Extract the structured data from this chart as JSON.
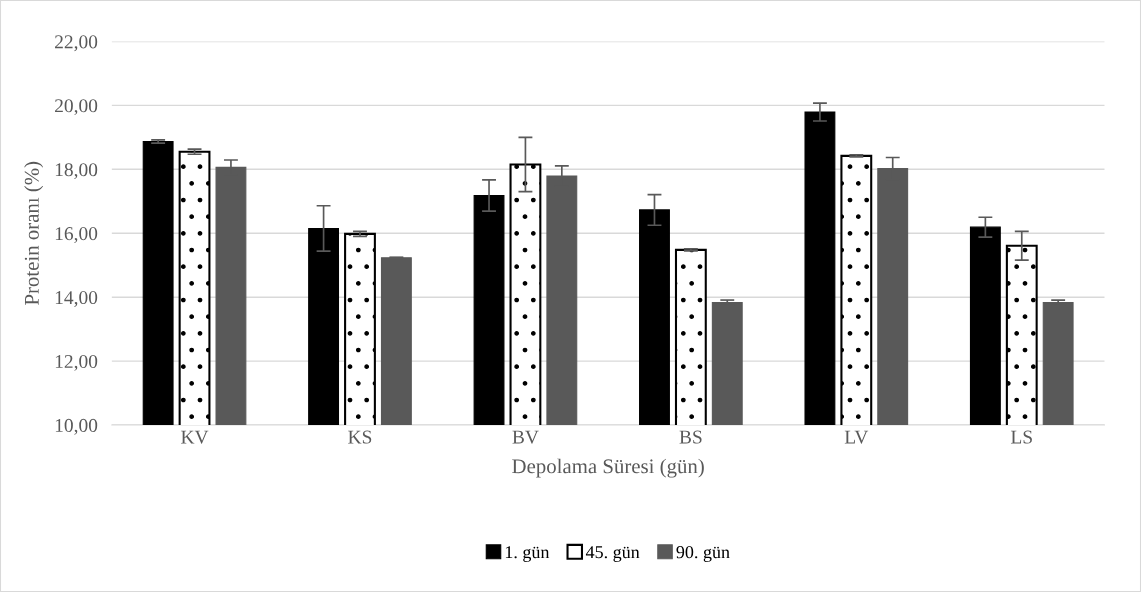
{
  "chart_data": {
    "type": "bar",
    "xlabel": "Depolama Süresi (gün)",
    "ylabel": "Protein oranı (%)",
    "categories": [
      "KV",
      "KS",
      "BV",
      "BS",
      "LV",
      "LS"
    ],
    "series": [
      {
        "name": "1. gün",
        "color": "#000000",
        "values": [
          18.87,
          16.15,
          17.18,
          16.73,
          19.79,
          16.19
        ],
        "errors": [
          0.05,
          0.71,
          0.49,
          0.48,
          0.28,
          0.31
        ]
      },
      {
        "name": "45. gün",
        "color": "#ffffff",
        "values": [
          18.55,
          15.98,
          18.15,
          15.48,
          18.42,
          15.61
        ],
        "errors": [
          0.08,
          0.08,
          0.85,
          0.03,
          0.03,
          0.45
        ]
      },
      {
        "name": "90. gün",
        "color": "#595959",
        "values": [
          18.06,
          15.23,
          17.79,
          13.83,
          18.02,
          13.83
        ],
        "errors": [
          0.23,
          0.02,
          0.32,
          0.08,
          0.35,
          0.08
        ]
      }
    ],
    "ylim": [
      10,
      22
    ],
    "yticks": [
      {
        "value": 10,
        "label": "10,00"
      },
      {
        "value": 12,
        "label": "12,00"
      },
      {
        "value": 14,
        "label": "14,00"
      },
      {
        "value": 16,
        "label": "16,00"
      },
      {
        "value": 18,
        "label": "18,00"
      },
      {
        "value": 20,
        "label": "20,00"
      },
      {
        "value": 22,
        "label": "22,00"
      }
    ],
    "grid": "y",
    "legend": "bottom"
  }
}
